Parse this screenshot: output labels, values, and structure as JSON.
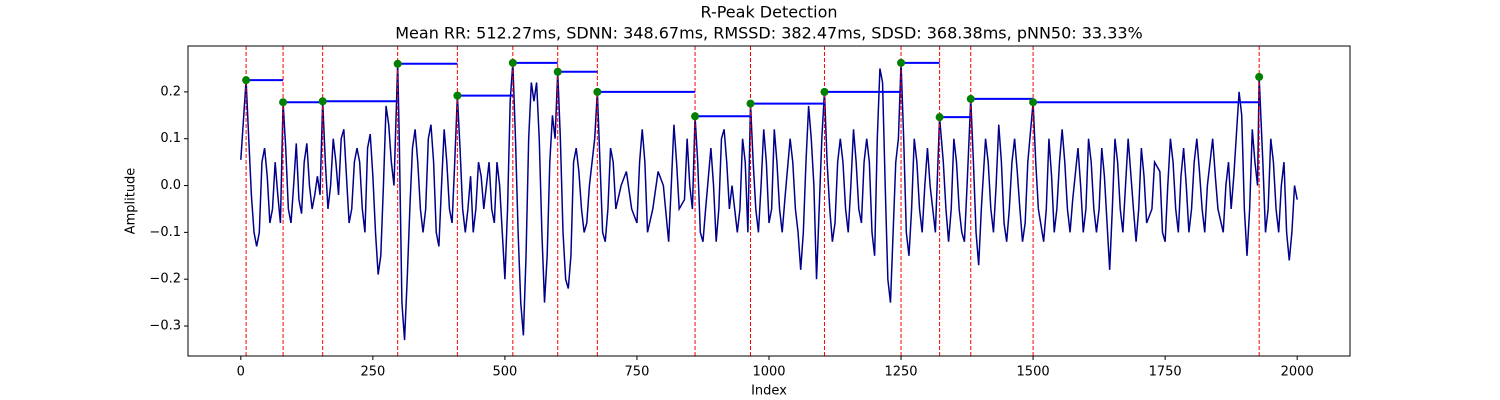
{
  "chart_data": {
    "type": "line",
    "title": "R-Peak Detection",
    "subtitle": "Mean RR: 512.27ms, SDNN: 348.67ms, RMSSD: 382.47ms, SDSD: 368.38ms, pNN50: 33.33%",
    "xlabel": "Index",
    "ylabel": "Amplitude",
    "xlim": [
      -100,
      2100
    ],
    "xticks": [
      0,
      250,
      500,
      750,
      1000,
      1250,
      1500,
      1750,
      2000
    ],
    "ylim": [
      -0.364,
      0.298
    ],
    "yticks": [
      {
        "value": -0.3,
        "label": "−0.3"
      },
      {
        "value": -0.2,
        "label": "−0.2"
      },
      {
        "value": -0.1,
        "label": "−0.1"
      },
      {
        "value": 0,
        "label": "0.0"
      },
      0.1,
      0.2
    ],
    "x": [
      0,
      10,
      15,
      20,
      25,
      30,
      35,
      40,
      45,
      50,
      55,
      60,
      65,
      70,
      75,
      80,
      85,
      90,
      95,
      100,
      105,
      110,
      115,
      120,
      125,
      130,
      135,
      140,
      145,
      150,
      155,
      160,
      165,
      170,
      175,
      180,
      185,
      190,
      195,
      200,
      205,
      210,
      215,
      220,
      225,
      230,
      235,
      240,
      245,
      250,
      255,
      260,
      265,
      270,
      275,
      280,
      285,
      290,
      297,
      300,
      305,
      310,
      315,
      320,
      325,
      330,
      335,
      340,
      345,
      350,
      355,
      360,
      365,
      370,
      375,
      380,
      385,
      390,
      395,
      400,
      405,
      410,
      415,
      420,
      425,
      430,
      435,
      440,
      445,
      450,
      455,
      460,
      465,
      470,
      475,
      480,
      485,
      490,
      495,
      500,
      505,
      510,
      515,
      520,
      525,
      530,
      535,
      540,
      545,
      550,
      555,
      560,
      565,
      570,
      575,
      580,
      585,
      590,
      595,
      600,
      605,
      610,
      615,
      620,
      625,
      630,
      635,
      640,
      645,
      650,
      655,
      660,
      665,
      670,
      675,
      680,
      685,
      690,
      695,
      700,
      705,
      710,
      720,
      730,
      740,
      750,
      755,
      760,
      765,
      770,
      780,
      790,
      800,
      810,
      815,
      820,
      825,
      830,
      840,
      845,
      850,
      855,
      860,
      865,
      870,
      875,
      880,
      890,
      895,
      900,
      905,
      910,
      915,
      920,
      925,
      930,
      940,
      945,
      950,
      955,
      960,
      965,
      970,
      975,
      980,
      985,
      990,
      995,
      1000,
      1005,
      1010,
      1015,
      1020,
      1025,
      1030,
      1040,
      1045,
      1050,
      1055,
      1060,
      1065,
      1070,
      1075,
      1080,
      1085,
      1090,
      1095,
      1100,
      1105,
      1110,
      1115,
      1120,
      1125,
      1130,
      1135,
      1140,
      1145,
      1150,
      1155,
      1160,
      1165,
      1170,
      1175,
      1180,
      1185,
      1190,
      1195,
      1200,
      1205,
      1210,
      1215,
      1220,
      1225,
      1230,
      1235,
      1240,
      1245,
      1250,
      1255,
      1260,
      1265,
      1270,
      1275,
      1280,
      1285,
      1290,
      1295,
      1300,
      1305,
      1310,
      1315,
      1323,
      1330,
      1335,
      1340,
      1345,
      1350,
      1355,
      1360,
      1365,
      1370,
      1375,
      1382,
      1387,
      1392,
      1397,
      1402,
      1410,
      1415,
      1420,
      1425,
      1430,
      1435,
      1440,
      1445,
      1450,
      1455,
      1460,
      1465,
      1470,
      1475,
      1480,
      1485,
      1490,
      1500,
      1505,
      1510,
      1520,
      1525,
      1530,
      1535,
      1540,
      1545,
      1550,
      1555,
      1560,
      1565,
      1570,
      1575,
      1585,
      1590,
      1595,
      1600,
      1605,
      1610,
      1615,
      1620,
      1625,
      1630,
      1635,
      1640,
      1645,
      1650,
      1655,
      1660,
      1665,
      1670,
      1675,
      1680,
      1690,
      1695,
      1700,
      1705,
      1710,
      1715,
      1725,
      1730,
      1740,
      1745,
      1750,
      1755,
      1760,
      1765,
      1770,
      1775,
      1780,
      1785,
      1790,
      1795,
      1800,
      1805,
      1810,
      1815,
      1820,
      1825,
      1830,
      1840,
      1845,
      1850,
      1860,
      1865,
      1870,
      1875,
      1880,
      1890,
      1895,
      1900,
      1905,
      1910,
      1915,
      1920,
      1925,
      1928,
      1935,
      1940,
      1945,
      1950,
      1955,
      1960,
      1965,
      1970,
      1975,
      1980,
      1985,
      1990,
      1995,
      2000
    ],
    "series": [
      {
        "color": "#00008b",
        "values": [
          0.055,
          0.225,
          0.1,
          -0.02,
          -0.1,
          -0.13,
          -0.1,
          0.05,
          0.08,
          0.02,
          -0.08,
          -0.05,
          0.05,
          -0.02,
          -0.08,
          0.178,
          0.08,
          -0.05,
          -0.08,
          0.0,
          0.09,
          -0.03,
          -0.06,
          0.05,
          0.09,
          0.0,
          -0.05,
          -0.02,
          0.02,
          -0.02,
          0.18,
          0.05,
          -0.05,
          0.0,
          0.1,
          0.05,
          -0.02,
          0.1,
          0.12,
          0.02,
          -0.08,
          -0.05,
          0.05,
          0.08,
          0.05,
          -0.05,
          -0.1,
          0.08,
          0.11,
          0.02,
          -0.1,
          -0.19,
          -0.15,
          0.0,
          0.17,
          0.13,
          0.05,
          0.0,
          0.26,
          0.1,
          -0.25,
          -0.33,
          -0.2,
          -0.05,
          0.08,
          0.12,
          0.05,
          -0.05,
          -0.1,
          -0.05,
          0.1,
          0.13,
          0.05,
          -0.1,
          -0.13,
          0.0,
          0.12,
          0.05,
          -0.05,
          -0.08,
          0.05,
          0.192,
          0.08,
          -0.05,
          -0.1,
          -0.05,
          0.02,
          -0.1,
          -0.05,
          0.05,
          0.02,
          -0.05,
          0.0,
          0.05,
          -0.05,
          -0.08,
          0.05,
          0.0,
          -0.1,
          -0.2,
          -0.05,
          0.18,
          0.262,
          0.1,
          -0.1,
          -0.25,
          -0.32,
          -0.15,
          0.1,
          0.22,
          0.18,
          0.22,
          0.1,
          -0.1,
          -0.25,
          -0.15,
          0.05,
          0.15,
          0.1,
          0.243,
          0.1,
          -0.1,
          -0.2,
          -0.22,
          -0.15,
          0.05,
          0.08,
          0.03,
          -0.05,
          -0.1,
          -0.08,
          0.0,
          0.05,
          0.1,
          0.2,
          0.05,
          -0.1,
          -0.12,
          -0.05,
          0.08,
          0.05,
          -0.05,
          0.0,
          0.03,
          -0.05,
          -0.08,
          0.05,
          0.12,
          0.05,
          -0.1,
          -0.05,
          0.03,
          0.0,
          -0.12,
          0.0,
          0.13,
          0.05,
          -0.05,
          -0.03,
          0.1,
          0.0,
          -0.05,
          0.148,
          0.05,
          -0.1,
          -0.12,
          -0.05,
          0.08,
          0.0,
          -0.12,
          -0.05,
          0.1,
          0.12,
          0.05,
          -0.05,
          0.0,
          -0.1,
          -0.05,
          0.1,
          0.05,
          -0.1,
          0.175,
          0.05,
          -0.05,
          -0.1,
          0.0,
          0.12,
          0.05,
          -0.08,
          -0.05,
          0.12,
          0.05,
          -0.05,
          -0.1,
          -0.03,
          0.1,
          0.05,
          -0.05,
          -0.1,
          -0.18,
          -0.1,
          0.05,
          0.17,
          0.1,
          0.0,
          -0.2,
          -0.05,
          0.1,
          0.2,
          0.05,
          -0.05,
          -0.12,
          -0.08,
          0.05,
          0.1,
          0.05,
          -0.05,
          -0.1,
          0.0,
          0.12,
          0.05,
          -0.05,
          -0.08,
          0.05,
          0.1,
          0.05,
          -0.1,
          -0.15,
          0.1,
          0.25,
          0.22,
          0.0,
          -0.2,
          -0.25,
          -0.1,
          0.05,
          0.1,
          0.262,
          0.1,
          -0.1,
          -0.15,
          -0.05,
          0.1,
          0.05,
          -0.05,
          -0.1,
          0.0,
          0.08,
          0.0,
          -0.05,
          -0.1,
          0.146,
          0.05,
          -0.05,
          -0.12,
          -0.05,
          0.1,
          0.05,
          -0.05,
          -0.1,
          -0.12,
          0.0,
          0.185,
          0.05,
          -0.1,
          -0.17,
          -0.05,
          0.1,
          0.05,
          -0.05,
          -0.1,
          0.0,
          0.13,
          0.05,
          -0.08,
          -0.12,
          -0.05,
          0.05,
          0.1,
          0.03,
          -0.05,
          -0.12,
          -0.08,
          0.05,
          0.178,
          0.05,
          -0.05,
          -0.12,
          -0.05,
          0.1,
          0.02,
          -0.1,
          -0.05,
          0.05,
          0.12,
          0.05,
          -0.05,
          -0.1,
          -0.03,
          0.08,
          0.0,
          -0.1,
          -0.05,
          0.1,
          0.05,
          -0.05,
          -0.1,
          -0.05,
          0.08,
          0.02,
          -0.08,
          -0.18,
          -0.05,
          0.1,
          0.05,
          -0.05,
          -0.1,
          0.0,
          0.1,
          -0.05,
          -0.12,
          -0.05,
          0.08,
          0.02,
          -0.08,
          -0.05,
          0.05,
          0.03,
          -0.1,
          -0.12,
          0.0,
          0.1,
          0.05,
          -0.05,
          -0.1,
          0.02,
          0.08,
          0.0,
          -0.1,
          -0.05,
          0.05,
          0.1,
          0.03,
          -0.05,
          -0.1,
          0.0,
          0.1,
          0.02,
          -0.05,
          -0.1,
          0.0,
          0.05,
          -0.05,
          0.02,
          0.2,
          0.15,
          -0.05,
          -0.15,
          -0.05,
          0.12,
          0.05,
          0.0,
          0.232,
          0.05,
          -0.1,
          -0.05,
          0.1,
          0.05,
          -0.05,
          -0.1,
          0.0,
          0.05,
          -0.1,
          -0.16,
          -0.1,
          0.0,
          -0.03
        ]
      }
    ],
    "peaks": {
      "color": "#008000",
      "line_color": "#ff0000",
      "interval_color": "#0000ff",
      "x": [
        10,
        80,
        155,
        297,
        410,
        515,
        600,
        675,
        860,
        965,
        1105,
        1250,
        1323,
        1382,
        1500,
        1928
      ],
      "values": [
        0.225,
        0.178,
        0.18,
        0.26,
        0.192,
        0.262,
        0.243,
        0.2,
        0.148,
        0.175,
        0.2,
        0.262,
        0.146,
        0.185,
        0.178,
        0.232
      ]
    }
  }
}
